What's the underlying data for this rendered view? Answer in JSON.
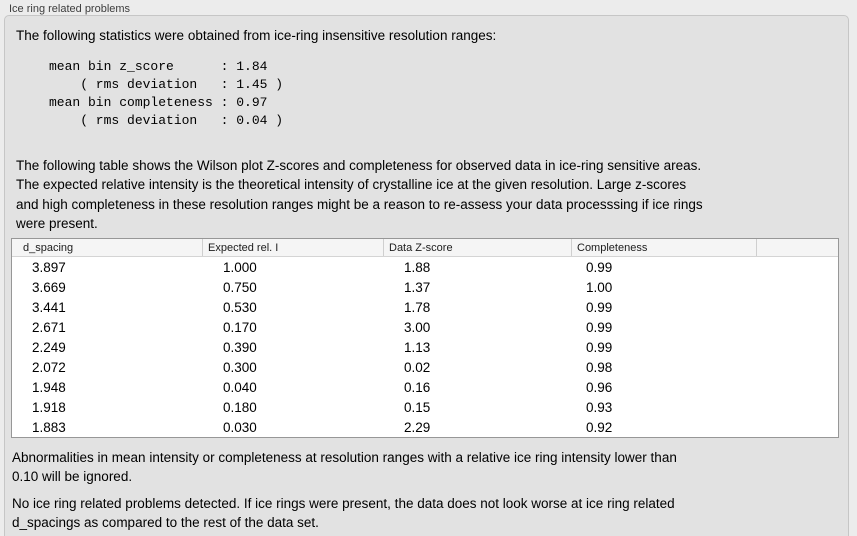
{
  "panel": {
    "title": "Ice ring related problems"
  },
  "intro": {
    "text": "The following statistics were obtained from ice-ring insensitive resolution ranges:",
    "stats_block": "mean bin z_score      : 1.84\n    ( rms deviation   : 1.45 )\nmean bin completeness : 0.97\n    ( rms deviation   : 0.04 )",
    "stats": {
      "mean_bin_z_score": "1.84",
      "z_score_rms_deviation": "1.45",
      "mean_bin_completeness": "0.97",
      "completeness_rms_deviation": "0.04"
    }
  },
  "table_description": "The following table shows the Wilson plot Z-scores and completeness for observed data in ice-ring sensitive areas.\nThe expected relative intensity is the theoretical intensity of crystalline ice at the given resolution. Large z-scores\nand high completeness in these resolution ranges might be a reason to re-assess your data processsing if ice rings\nwere present.",
  "table": {
    "columns": [
      "d_spacing",
      "Expected rel. I",
      "Data Z-score",
      "Completeness",
      ""
    ],
    "rows": [
      [
        "3.897",
        "1.000",
        "1.88",
        "0.99"
      ],
      [
        "3.669",
        "0.750",
        "1.37",
        "1.00"
      ],
      [
        "3.441",
        "0.530",
        "1.78",
        "0.99"
      ],
      [
        "2.671",
        "0.170",
        "3.00",
        "0.99"
      ],
      [
        "2.249",
        "0.390",
        "1.13",
        "0.99"
      ],
      [
        "2.072",
        "0.300",
        "0.02",
        "0.98"
      ],
      [
        "1.948",
        "0.040",
        "0.16",
        "0.96"
      ],
      [
        "1.918",
        "0.180",
        "0.15",
        "0.93"
      ],
      [
        "1.883",
        "0.030",
        "2.29",
        "0.92"
      ]
    ]
  },
  "notes": {
    "ignore_note": "Abnormalities in mean intensity or completeness at resolution ranges with a relative ice ring intensity lower than\n0.10 will be ignored.",
    "conclusion": "No ice ring related problems detected. If ice rings were present, the data does not look worse at ice ring related\nd_spacings as compared to the rest of the data set."
  },
  "colors": {
    "page_background": "#ececec",
    "groupbox_background": "#e2e2e2",
    "groupbox_border": "#c6c6c6",
    "table_background": "#ffffff",
    "table_border": "#979797",
    "table_header_background": "#f5f5f5",
    "text": "#000000",
    "title_text": "#3d3d3d"
  }
}
